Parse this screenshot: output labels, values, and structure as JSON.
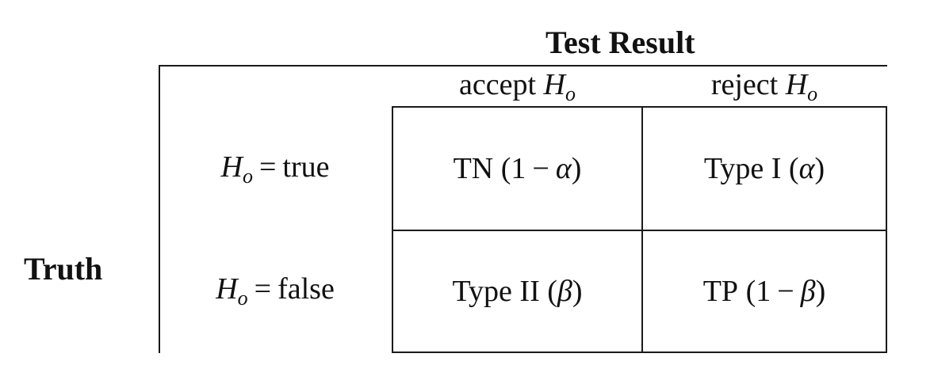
{
  "title_top": "Test Result",
  "title_side": "Truth",
  "columns": [
    {
      "word": "accept",
      "var": "H",
      "sub": "o"
    },
    {
      "word": "reject",
      "var": "H",
      "sub": "o"
    }
  ],
  "rows": [
    {
      "var": "H",
      "sub": "o",
      "op": "=",
      "value": "true"
    },
    {
      "var": "H",
      "sub": "o",
      "op": "=",
      "value": "false"
    }
  ],
  "cells": [
    [
      {
        "label": "TN",
        "open": "(",
        "num": "1",
        "minus": "−",
        "symbol": "α",
        "close": ")"
      },
      {
        "label": "Type I",
        "open": "(",
        "symbol": "α",
        "close": ")"
      }
    ],
    [
      {
        "label": "Type II",
        "open": "(",
        "symbol": "β",
        "close": ")"
      },
      {
        "label": "TP",
        "open": "(",
        "num": "1",
        "minus": "−",
        "symbol": "β",
        "close": ")"
      }
    ]
  ]
}
